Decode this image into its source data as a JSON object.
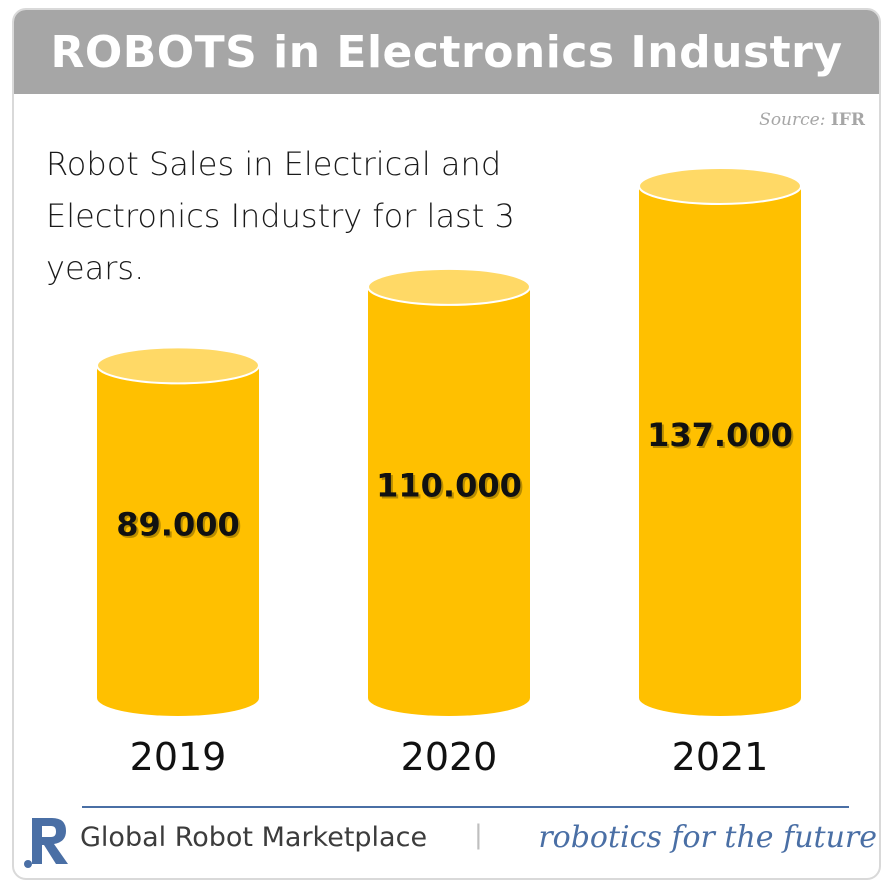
{
  "header": {
    "title": "ROBOTS in Electronics Industry"
  },
  "source": {
    "label": "Source:",
    "name": "IFR"
  },
  "chart_data": {
    "type": "bar",
    "title": "Robot Sales in Electrical and Electronics Industry for last 3 years.",
    "categories": [
      "2019",
      "2020",
      "2021"
    ],
    "values": [
      89000,
      110000,
      137000
    ],
    "value_labels": [
      "89.000",
      "110.000",
      "137.000"
    ],
    "bar_color": "#ffc000",
    "bar_top_color": "#ffd966",
    "ylim": [
      0,
      137000
    ],
    "grid": false
  },
  "footer": {
    "brand": "Global Robot Marketplace",
    "separator": "|",
    "tagline": "robotics for the future",
    "logo_letter": "R",
    "accent_color": "#4a6fa5"
  }
}
